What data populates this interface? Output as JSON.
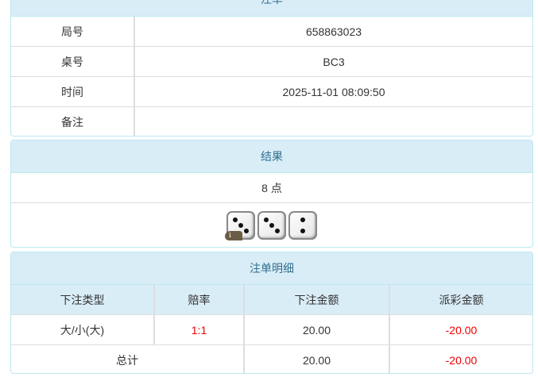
{
  "order": {
    "title": "注单",
    "rows": [
      {
        "label": "局号",
        "value": "658863023"
      },
      {
        "label": "桌号",
        "value": "BC3"
      },
      {
        "label": "时间",
        "value": "2025-11-01 08:09:50"
      },
      {
        "label": "备注",
        "value": ""
      }
    ]
  },
  "result": {
    "title": "结果",
    "points": "8 点",
    "dice": [
      3,
      3,
      2
    ],
    "badge": "i"
  },
  "details": {
    "title": "注单明细",
    "headers": [
      "下注类型",
      "赔率",
      "下注金额",
      "派彩金额"
    ],
    "rows": [
      {
        "type": "大/小(大)",
        "odds": "1:1",
        "amount": "20.00",
        "payout": "-20.00"
      }
    ],
    "total": {
      "label": "总计",
      "amount": "20.00",
      "payout": "-20.00"
    }
  },
  "colors": {
    "header_bg": "#d9edf7",
    "header_text": "#31708f",
    "negative": "#ee0000"
  }
}
